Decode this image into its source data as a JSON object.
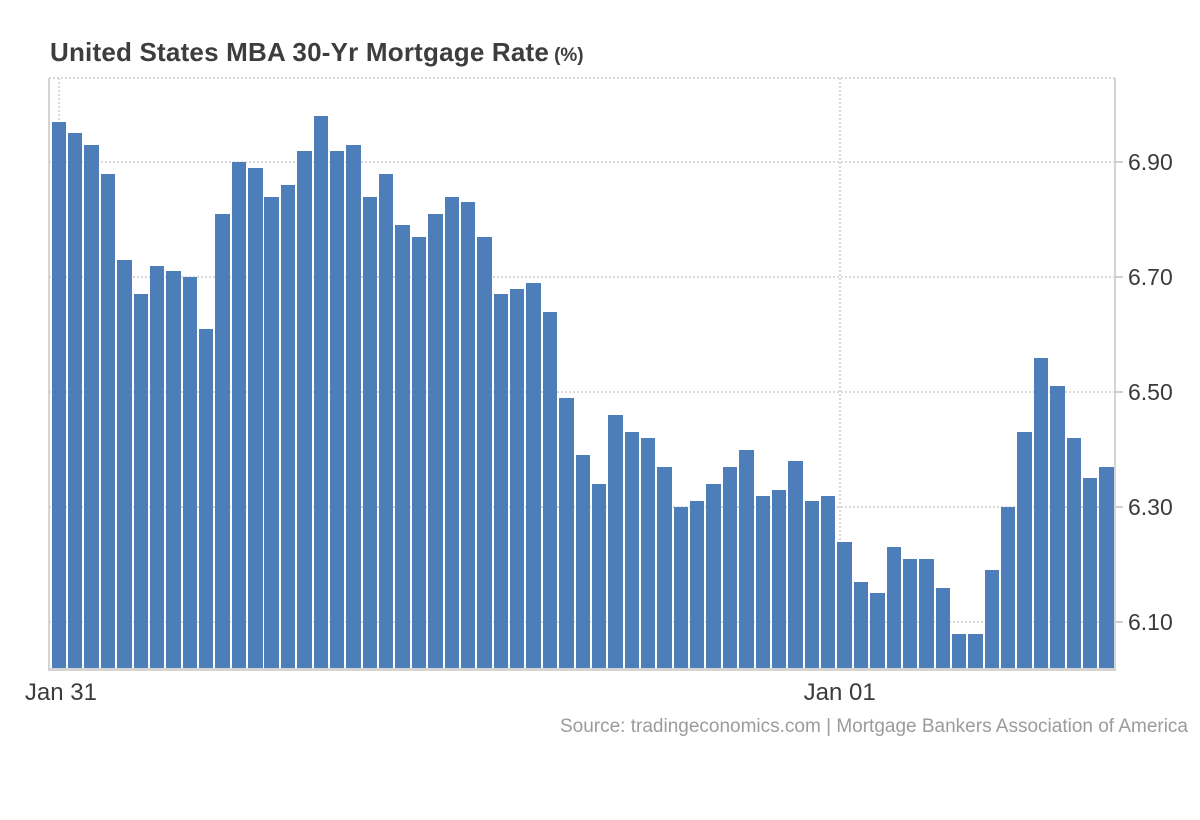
{
  "title": {
    "main": "United States MBA 30-Yr Mortgage Rate",
    "unit": "(%)"
  },
  "source_text": "Source: tradingeconomics.com | Mortgage Bankers Association of America",
  "colors": {
    "bar": "#4e7eb9",
    "grid": "#d9d9d9",
    "axis_border": "#d4d4d4",
    "tick": "#cfcfcf",
    "axis_label": "#3b3b3b",
    "title_text": "#3d3d3d",
    "source_text": "#9b9b9b",
    "background": "#ffffff"
  },
  "chart_data": {
    "type": "bar",
    "title": "United States MBA 30-Yr Mortgage Rate (%)",
    "ylabel": "",
    "xlabel": "",
    "legend": "none",
    "grid": "dotted",
    "ylim": [
      6.01,
      7.05
    ],
    "y_axis": {
      "side": "right",
      "ticks": [
        {
          "label": "6.90",
          "value": 6.9
        },
        {
          "label": "6.70",
          "value": 6.7
        },
        {
          "label": "6.50",
          "value": 6.5
        },
        {
          "label": "6.30",
          "value": 6.3
        },
        {
          "label": "6.10",
          "value": 6.1
        }
      ]
    },
    "x_axis": {
      "ticks": [
        {
          "label": "Jan 31",
          "bar_index": 0,
          "align": "left"
        },
        {
          "label": "Jan 01",
          "bar_index": 47.7,
          "align": "center"
        }
      ]
    },
    "values": [
      6.97,
      6.95,
      6.93,
      6.88,
      6.73,
      6.67,
      6.72,
      6.71,
      6.7,
      6.61,
      6.81,
      6.9,
      6.89,
      6.84,
      6.86,
      6.92,
      6.98,
      6.92,
      6.93,
      6.84,
      6.88,
      6.79,
      6.77,
      6.81,
      6.84,
      6.83,
      6.77,
      6.67,
      6.68,
      6.69,
      6.64,
      6.49,
      6.39,
      6.34,
      6.46,
      6.43,
      6.42,
      6.37,
      6.3,
      6.31,
      6.34,
      6.37,
      6.4,
      6.32,
      6.33,
      6.38,
      6.31,
      6.32,
      6.24,
      6.17,
      6.15,
      6.23,
      6.21,
      6.21,
      6.16,
      6.08,
      6.08,
      6.19,
      6.3,
      6.43,
      6.56,
      6.51,
      6.42,
      6.35,
      6.37
    ]
  }
}
